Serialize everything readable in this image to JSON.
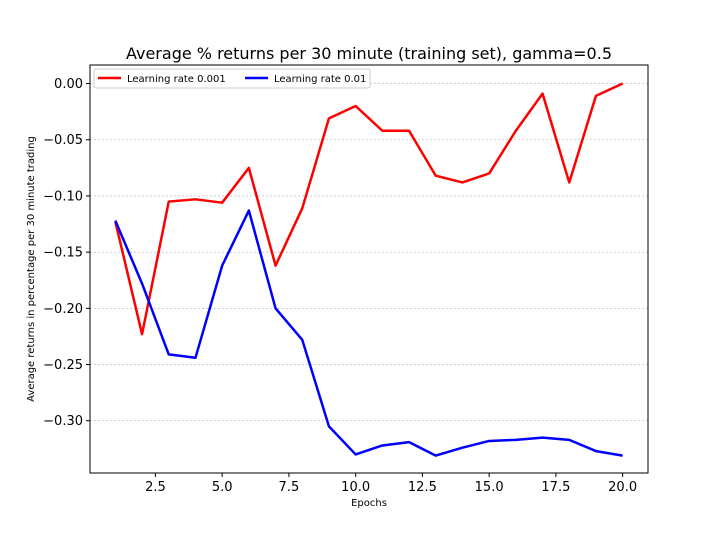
{
  "chart_data": {
    "type": "line",
    "title": "Average % returns per 30 minute (training set), gamma=0.5",
    "xlabel": "Epochs",
    "ylabel": "Average returns in percentage per 30 minute trading",
    "xlim": [
      0.05,
      20.95
    ],
    "ylim": [
      -0.3465,
      0.0165
    ],
    "x_ticks": [
      2.5,
      5.0,
      7.5,
      10.0,
      12.5,
      15.0,
      17.5,
      20.0
    ],
    "x_tick_labels": [
      "2.5",
      "5.0",
      "7.5",
      "10.0",
      "12.5",
      "15.0",
      "17.5",
      "20.0"
    ],
    "y_ticks": [
      0.0,
      -0.05,
      -0.1,
      -0.15,
      -0.2,
      -0.25,
      -0.3
    ],
    "y_tick_labels": [
      "0.00",
      "−0.05",
      "−0.10",
      "−0.15",
      "−0.20",
      "−0.25",
      "−0.30"
    ],
    "grid": "horizontal",
    "legend_position": "top-left",
    "x": [
      1,
      2,
      3,
      4,
      5,
      6,
      7,
      8,
      9,
      10,
      11,
      12,
      13,
      14,
      15,
      16,
      17,
      18,
      19,
      20
    ],
    "series": [
      {
        "name": "Learning rate 0.001",
        "color": "#ff0000",
        "values": [
          -0.123,
          -0.223,
          -0.105,
          -0.103,
          -0.106,
          -0.075,
          -0.162,
          -0.111,
          -0.031,
          -0.02,
          -0.042,
          -0.042,
          -0.082,
          -0.088,
          -0.08,
          -0.042,
          -0.009,
          -0.088,
          -0.011,
          0.0
        ]
      },
      {
        "name": "Learning rate 0.01",
        "color": "#0000ff",
        "values": [
          -0.122,
          -0.178,
          -0.241,
          -0.244,
          -0.162,
          -0.113,
          -0.2,
          -0.228,
          -0.305,
          -0.33,
          -0.322,
          -0.319,
          -0.331,
          -0.324,
          -0.318,
          -0.317,
          -0.315,
          -0.317,
          -0.327,
          -0.331
        ]
      }
    ]
  }
}
